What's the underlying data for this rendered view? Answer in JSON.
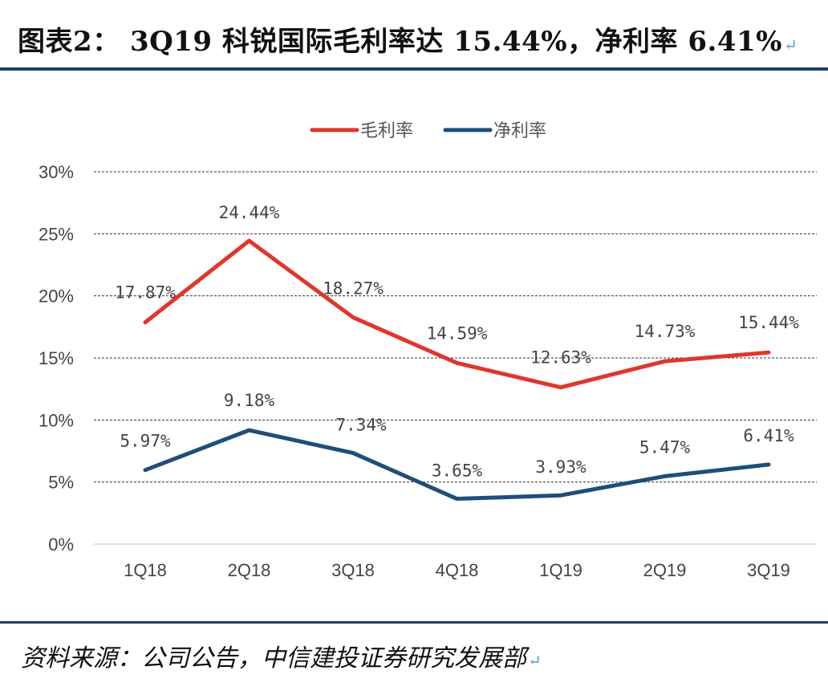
{
  "header": {
    "title": "图表2： 3Q19 科锐国际毛利率达 15.44%，净利率 6.41%",
    "return_mark": "↵"
  },
  "footer": {
    "source": "资料来源：公司公告，中信建投证券研究发展部",
    "return_mark": "↵"
  },
  "chart_data": {
    "type": "line",
    "categories": [
      "1Q18",
      "2Q18",
      "3Q18",
      "4Q18",
      "1Q19",
      "2Q19",
      "3Q19"
    ],
    "series": [
      {
        "name": "毛利率",
        "color": "#e0362c",
        "values": [
          17.87,
          24.44,
          18.27,
          14.59,
          12.63,
          14.73,
          15.44
        ],
        "labels": [
          "17.87%",
          "24.44%",
          "18.27%",
          "14.59%",
          "12.63%",
          "14.73%",
          "15.44%"
        ]
      },
      {
        "name": "净利率",
        "color": "#1f4e79",
        "values": [
          5.97,
          9.18,
          7.34,
          3.65,
          3.93,
          5.47,
          6.41
        ],
        "labels": [
          "5.97%",
          "9.18%",
          "7.34%",
          "3.65%",
          "3.93%",
          "5.47%",
          "6.41%"
        ]
      }
    ],
    "ylim": [
      0,
      30
    ],
    "yticks": [
      0,
      5,
      10,
      15,
      20,
      25,
      30
    ],
    "ytick_labels": [
      "0%",
      "5%",
      "10%",
      "15%",
      "20%",
      "25%",
      "30%"
    ],
    "grid": "dashed-horizontal",
    "legend": "top-center",
    "xlabel": "",
    "ylabel": ""
  }
}
